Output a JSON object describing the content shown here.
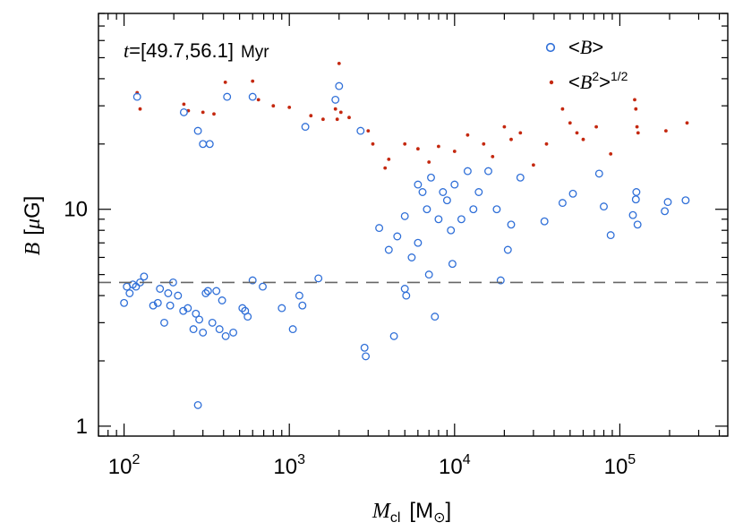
{
  "chart_data": {
    "type": "scatter",
    "title": "",
    "annotation": {
      "var": "t",
      "eq": "=[",
      "range": "49.7,56.1",
      "close": "]",
      "unit": "Myr"
    },
    "x_axis": {
      "label": {
        "var": "M",
        "sub": "cl",
        "open": "[",
        "unit": "M",
        "close": "]"
      },
      "scale": "log",
      "range": [
        70,
        450000
      ],
      "ticks": [
        {
          "value": 100,
          "base": "10",
          "exp": "2"
        },
        {
          "value": 1000,
          "base": "10",
          "exp": "3"
        },
        {
          "value": 10000,
          "base": "10",
          "exp": "4"
        },
        {
          "value": 100000,
          "base": "10",
          "exp": "5"
        }
      ]
    },
    "y_axis": {
      "label": {
        "var": "B",
        "open": "[",
        "mu": "μ",
        "unit": "G",
        "close": "]"
      },
      "scale": "log",
      "range": [
        0.9,
        80
      ],
      "ticks": [
        {
          "value": 1,
          "label": "1"
        },
        {
          "value": 10,
          "label": "10"
        }
      ]
    },
    "reference_line": {
      "y": 4.6,
      "style": "dashed",
      "color": "#666666"
    },
    "legend": {
      "placement": "top-right",
      "entries": [
        {
          "series": 0,
          "lt": "<",
          "var": "B",
          "gt": ">",
          "sq": "",
          "exp": ""
        },
        {
          "series": 1,
          "lt": "<",
          "var": "B",
          "gt": ">",
          "sq": "2",
          "exp": "1/2"
        }
      ]
    },
    "series": [
      {
        "name": "<B>",
        "marker": "open-circle",
        "color": "#2f6fd8",
        "points": [
          [
            100,
            3.7
          ],
          [
            104,
            4.4
          ],
          [
            108,
            4.1
          ],
          [
            113,
            4.5
          ],
          [
            118,
            4.4
          ],
          [
            125,
            4.6
          ],
          [
            132,
            4.9
          ],
          [
            150,
            3.6
          ],
          [
            160,
            3.7
          ],
          [
            165,
            4.3
          ],
          [
            175,
            3.0
          ],
          [
            185,
            4.1
          ],
          [
            190,
            3.6
          ],
          [
            198,
            4.6
          ],
          [
            212,
            4.0
          ],
          [
            228,
            3.4
          ],
          [
            243,
            3.5
          ],
          [
            263,
            2.8
          ],
          [
            272,
            3.3
          ],
          [
            285,
            3.1
          ],
          [
            300,
            2.7
          ],
          [
            312,
            4.1
          ],
          [
            322,
            4.2
          ],
          [
            342,
            3.0
          ],
          [
            362,
            4.2
          ],
          [
            378,
            2.8
          ],
          [
            392,
            3.8
          ],
          [
            412,
            2.6
          ],
          [
            458,
            2.7
          ],
          [
            520,
            3.5
          ],
          [
            540,
            3.4
          ],
          [
            560,
            3.2
          ],
          [
            600,
            4.7
          ],
          [
            690,
            4.4
          ],
          [
            900,
            3.5
          ],
          [
            1050,
            2.8
          ],
          [
            1150,
            4.0
          ],
          [
            1200,
            3.6
          ],
          [
            1500,
            4.8
          ],
          [
            2850,
            2.3
          ],
          [
            2900,
            2.1
          ],
          [
            4300,
            2.6
          ],
          [
            5000,
            4.3
          ],
          [
            5100,
            4.0
          ],
          [
            7600,
            3.2
          ],
          [
            19000,
            4.7
          ],
          [
            120,
            33
          ],
          [
            230,
            28
          ],
          [
            280,
            23
          ],
          [
            300,
            20
          ],
          [
            330,
            20
          ],
          [
            420,
            33
          ],
          [
            600,
            33
          ],
          [
            1250,
            24
          ],
          [
            1900,
            32
          ],
          [
            2000,
            37
          ],
          [
            2700,
            23
          ],
          [
            280,
            1.25
          ],
          [
            6000,
            13
          ],
          [
            6400,
            12
          ],
          [
            6800,
            10
          ],
          [
            7200,
            14
          ],
          [
            8000,
            9
          ],
          [
            8500,
            12
          ],
          [
            9000,
            11
          ],
          [
            9500,
            8
          ],
          [
            10000,
            13
          ],
          [
            11000,
            9
          ],
          [
            12000,
            15
          ],
          [
            13000,
            10
          ],
          [
            14000,
            12
          ],
          [
            16000,
            15
          ],
          [
            18000,
            10
          ],
          [
            21000,
            6.5
          ],
          [
            22000,
            8.5
          ],
          [
            25000,
            14
          ],
          [
            35000,
            8.8
          ],
          [
            45000,
            10.7
          ],
          [
            52000,
            11.8
          ],
          [
            75000,
            14.6
          ],
          [
            80000,
            10.3
          ],
          [
            88000,
            7.6
          ],
          [
            120000,
            9.4
          ],
          [
            125000,
            11.1
          ],
          [
            126000,
            12.0
          ],
          [
            128000,
            8.5
          ],
          [
            187000,
            9.8
          ],
          [
            195000,
            10.8
          ],
          [
            250000,
            11.0
          ],
          [
            5500,
            6.0
          ],
          [
            7000,
            5.0
          ],
          [
            9700,
            5.6
          ],
          [
            4000,
            6.5
          ],
          [
            4500,
            7.5
          ],
          [
            6000,
            7.0
          ],
          [
            3500,
            8.2
          ],
          [
            5000,
            9.3
          ]
        ]
      },
      {
        "name": "<B^2>^1/2",
        "marker": "filled-dot",
        "color": "#c4280f",
        "points": [
          [
            120,
            34.5
          ],
          [
            125,
            29.0
          ],
          [
            230,
            30.5
          ],
          [
            245,
            28.5
          ],
          [
            300,
            28.0
          ],
          [
            350,
            27.5
          ],
          [
            410,
            38.5
          ],
          [
            600,
            39.0
          ],
          [
            650,
            32.0
          ],
          [
            800,
            30.0
          ],
          [
            1000,
            29.5
          ],
          [
            1350,
            27.0
          ],
          [
            1600,
            26.0
          ],
          [
            1900,
            29.0
          ],
          [
            1950,
            26.0
          ],
          [
            2000,
            47.0
          ],
          [
            2050,
            28.0
          ],
          [
            2300,
            26.5
          ],
          [
            3000,
            23.0
          ],
          [
            3200,
            20.0
          ],
          [
            5000,
            20.0
          ],
          [
            6000,
            19.0
          ],
          [
            8000,
            19.5
          ],
          [
            10000,
            18.5
          ],
          [
            12000,
            22.0
          ],
          [
            15000,
            20.0
          ],
          [
            20000,
            24.0
          ],
          [
            22000,
            21.0
          ],
          [
            25000,
            22.5
          ],
          [
            36000,
            20.0
          ],
          [
            45000,
            29.0
          ],
          [
            50000,
            25.0
          ],
          [
            55000,
            22.5
          ],
          [
            72000,
            24.0
          ],
          [
            88000,
            18.0
          ],
          [
            123000,
            32.0
          ],
          [
            125000,
            29.0
          ],
          [
            127000,
            24.0
          ],
          [
            129000,
            22.5
          ],
          [
            190000,
            23.0
          ],
          [
            255000,
            25.0
          ],
          [
            60000,
            21.0
          ],
          [
            17000,
            17.5
          ],
          [
            30000,
            16.0
          ],
          [
            4000,
            17.0
          ],
          [
            3800,
            15.5
          ],
          [
            7000,
            16.5
          ]
        ]
      }
    ]
  }
}
